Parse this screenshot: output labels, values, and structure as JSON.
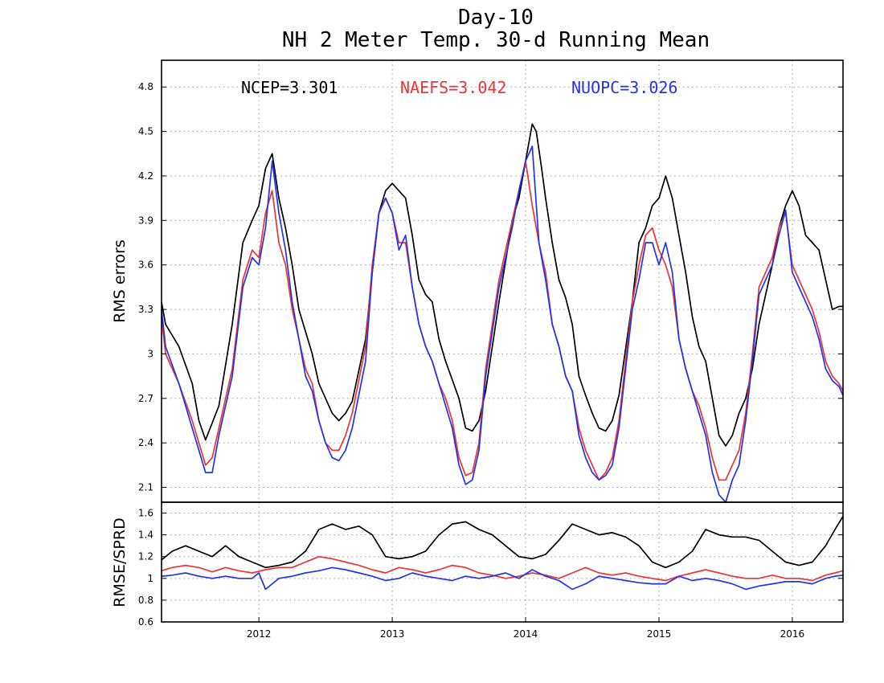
{
  "colors": {
    "ncep": "#000000",
    "naefs": "#ee3333",
    "nuopc": "#2233ee"
  },
  "title_lines": [
    "Day-10",
    "NH 2 Meter Temp. 30-d Running Mean"
  ],
  "stats": [
    {
      "text": "NCEP=3.301",
      "color": "#000000"
    },
    {
      "text": "NAEFS=3.042",
      "color": "#ee3333"
    },
    {
      "text": "NUOPC=3.026",
      "color": "#2233ee"
    }
  ],
  "chart_data": [
    {
      "type": "line",
      "ylabel": "RMS errors",
      "xlim": [
        2011.27,
        2016.38
      ],
      "ylim": [
        2.0,
        4.98
      ],
      "yticks": [
        "2.1",
        "2.4",
        "2.7",
        "3",
        "3.3",
        "3.6",
        "3.9",
        "4.2",
        "4.5",
        "4.8"
      ],
      "xticks": [
        "2012",
        "2013",
        "2014",
        "2015",
        "2016"
      ],
      "grid": true,
      "series": [
        {
          "name": "NCEP",
          "color": "#000000",
          "x": [
            2011.27,
            2011.3,
            2011.4,
            2011.5,
            2011.55,
            2011.6,
            2011.7,
            2011.8,
            2011.88,
            2011.95,
            2012.0,
            2012.05,
            2012.1,
            2012.15,
            2012.2,
            2012.25,
            2012.3,
            2012.35,
            2012.4,
            2012.45,
            2012.5,
            2012.55,
            2012.6,
            2012.65,
            2012.7,
            2012.8,
            2012.85,
            2012.9,
            2012.95,
            2013.0,
            2013.05,
            2013.1,
            2013.15,
            2013.2,
            2013.25,
            2013.3,
            2013.35,
            2013.4,
            2013.5,
            2013.55,
            2013.6,
            2013.65,
            2013.7,
            2013.8,
            2013.9,
            2013.95,
            2014.0,
            2014.05,
            2014.08,
            2014.12,
            2014.15,
            2014.2,
            2014.25,
            2014.3,
            2014.35,
            2014.4,
            2014.45,
            2014.5,
            2014.55,
            2014.6,
            2014.65,
            2014.7,
            2014.8,
            2014.85,
            2014.9,
            2014.95,
            2015.0,
            2015.05,
            2015.1,
            2015.15,
            2015.2,
            2015.25,
            2015.3,
            2015.35,
            2015.4,
            2015.45,
            2015.5,
            2015.55,
            2015.6,
            2015.65,
            2015.7,
            2015.75,
            2015.85,
            2015.9,
            2015.95,
            2016.0,
            2016.05,
            2016.1,
            2016.15,
            2016.2,
            2016.25,
            2016.3,
            2016.35,
            2016.38
          ],
          "y": [
            3.35,
            3.2,
            3.05,
            2.8,
            2.55,
            2.42,
            2.65,
            3.2,
            3.75,
            3.9,
            4.0,
            4.25,
            4.35,
            4.05,
            3.85,
            3.6,
            3.3,
            3.15,
            3.0,
            2.8,
            2.7,
            2.6,
            2.55,
            2.6,
            2.68,
            3.1,
            3.55,
            3.95,
            4.1,
            4.15,
            4.1,
            4.05,
            3.8,
            3.5,
            3.4,
            3.35,
            3.1,
            2.95,
            2.7,
            2.5,
            2.48,
            2.55,
            2.75,
            3.35,
            3.9,
            4.05,
            4.3,
            4.55,
            4.5,
            4.25,
            4.05,
            3.75,
            3.5,
            3.38,
            3.2,
            2.85,
            2.72,
            2.6,
            2.5,
            2.48,
            2.55,
            2.72,
            3.35,
            3.75,
            3.85,
            4.0,
            4.05,
            4.2,
            4.05,
            3.8,
            3.55,
            3.25,
            3.05,
            2.95,
            2.7,
            2.45,
            2.38,
            2.45,
            2.6,
            2.7,
            2.9,
            3.2,
            3.6,
            3.85,
            4.0,
            4.1,
            4.0,
            3.8,
            3.75,
            3.7,
            3.5,
            3.3,
            3.32,
            3.32
          ]
        },
        {
          "name": "NAEFS",
          "color": "#ee3333",
          "x": [
            2011.27,
            2011.3,
            2011.4,
            2011.5,
            2011.55,
            2011.6,
            2011.65,
            2011.7,
            2011.8,
            2011.88,
            2011.95,
            2012.0,
            2012.05,
            2012.1,
            2012.15,
            2012.2,
            2012.25,
            2012.3,
            2012.35,
            2012.4,
            2012.45,
            2012.5,
            2012.55,
            2012.6,
            2012.65,
            2012.7,
            2012.8,
            2012.85,
            2012.9,
            2012.95,
            2013.0,
            2013.05,
            2013.1,
            2013.15,
            2013.2,
            2013.25,
            2013.3,
            2013.35,
            2013.4,
            2013.45,
            2013.5,
            2013.55,
            2013.6,
            2013.65,
            2013.7,
            2013.8,
            2013.9,
            2013.95,
            2014.0,
            2014.05,
            2014.1,
            2014.15,
            2014.2,
            2014.25,
            2014.3,
            2014.35,
            2014.4,
            2014.45,
            2014.5,
            2014.55,
            2014.6,
            2014.65,
            2014.7,
            2014.8,
            2014.85,
            2014.9,
            2014.95,
            2015.0,
            2015.05,
            2015.1,
            2015.15,
            2015.2,
            2015.25,
            2015.3,
            2015.35,
            2015.4,
            2015.45,
            2015.5,
            2015.55,
            2015.6,
            2015.65,
            2015.7,
            2015.75,
            2015.85,
            2015.9,
            2015.95,
            2016.0,
            2016.05,
            2016.1,
            2016.15,
            2016.2,
            2016.25,
            2016.3,
            2016.35,
            2016.38
          ],
          "y": [
            3.25,
            3.0,
            2.8,
            2.55,
            2.4,
            2.25,
            2.3,
            2.5,
            2.9,
            3.5,
            3.7,
            3.65,
            3.95,
            4.1,
            3.75,
            3.6,
            3.3,
            3.1,
            2.9,
            2.8,
            2.55,
            2.4,
            2.35,
            2.35,
            2.45,
            2.6,
            3.05,
            3.6,
            3.95,
            4.05,
            3.95,
            3.75,
            3.75,
            3.45,
            3.2,
            3.05,
            2.95,
            2.8,
            2.7,
            2.55,
            2.3,
            2.18,
            2.2,
            2.4,
            2.9,
            3.5,
            3.9,
            4.1,
            4.3,
            4.0,
            3.75,
            3.55,
            3.2,
            3.05,
            2.85,
            2.75,
            2.5,
            2.35,
            2.25,
            2.15,
            2.2,
            2.3,
            2.55,
            3.35,
            3.6,
            3.8,
            3.85,
            3.7,
            3.6,
            3.45,
            3.1,
            2.9,
            2.75,
            2.65,
            2.5,
            2.3,
            2.15,
            2.15,
            2.25,
            2.35,
            2.6,
            3.0,
            3.45,
            3.65,
            3.85,
            3.95,
            3.6,
            3.5,
            3.4,
            3.3,
            3.15,
            2.95,
            2.85,
            2.8,
            2.75
          ]
        },
        {
          "name": "NUOPC",
          "color": "#2233ee",
          "x": [
            2011.27,
            2011.3,
            2011.4,
            2011.5,
            2011.55,
            2011.6,
            2011.65,
            2011.7,
            2011.8,
            2011.88,
            2011.95,
            2012.0,
            2012.05,
            2012.1,
            2012.15,
            2012.2,
            2012.25,
            2012.3,
            2012.35,
            2012.4,
            2012.45,
            2012.5,
            2012.55,
            2012.6,
            2012.65,
            2012.7,
            2012.8,
            2012.85,
            2012.9,
            2012.95,
            2013.0,
            2013.05,
            2013.1,
            2013.15,
            2013.2,
            2013.25,
            2013.3,
            2013.35,
            2013.4,
            2013.45,
            2013.5,
            2013.55,
            2013.6,
            2013.65,
            2013.7,
            2013.8,
            2013.9,
            2013.95,
            2014.0,
            2014.05,
            2014.1,
            2014.15,
            2014.2,
            2014.25,
            2014.3,
            2014.35,
            2014.4,
            2014.45,
            2014.5,
            2014.55,
            2014.6,
            2014.65,
            2014.7,
            2014.8,
            2014.85,
            2014.9,
            2014.95,
            2015.0,
            2015.05,
            2015.1,
            2015.15,
            2015.2,
            2015.25,
            2015.3,
            2015.35,
            2015.4,
            2015.45,
            2015.5,
            2015.55,
            2015.6,
            2015.65,
            2015.7,
            2015.75,
            2015.85,
            2015.9,
            2015.95,
            2016.0,
            2016.05,
            2016.1,
            2016.15,
            2016.2,
            2016.25,
            2016.3,
            2016.35,
            2016.38
          ],
          "y": [
            3.3,
            3.05,
            2.8,
            2.5,
            2.35,
            2.2,
            2.2,
            2.45,
            2.85,
            3.45,
            3.65,
            3.6,
            3.85,
            4.3,
            3.95,
            3.7,
            3.35,
            3.1,
            2.85,
            2.75,
            2.55,
            2.4,
            2.3,
            2.28,
            2.35,
            2.5,
            2.95,
            3.55,
            3.95,
            4.05,
            3.95,
            3.7,
            3.8,
            3.45,
            3.2,
            3.05,
            2.95,
            2.8,
            2.65,
            2.5,
            2.25,
            2.12,
            2.15,
            2.35,
            2.85,
            3.45,
            3.85,
            4.1,
            4.3,
            4.4,
            3.75,
            3.5,
            3.2,
            3.05,
            2.85,
            2.75,
            2.45,
            2.3,
            2.2,
            2.15,
            2.18,
            2.25,
            2.5,
            3.3,
            3.5,
            3.75,
            3.75,
            3.6,
            3.75,
            3.55,
            3.1,
            2.9,
            2.75,
            2.6,
            2.45,
            2.2,
            2.05,
            2.0,
            2.15,
            2.25,
            2.55,
            2.95,
            3.4,
            3.6,
            3.8,
            3.97,
            3.55,
            3.45,
            3.35,
            3.25,
            3.1,
            2.9,
            2.82,
            2.78,
            2.72
          ]
        }
      ]
    },
    {
      "type": "line",
      "ylabel": "RMSE/SPRD",
      "xlim": [
        2011.27,
        2016.38
      ],
      "ylim": [
        0.6,
        1.7
      ],
      "yticks": [
        "0.6",
        "0.8",
        "1",
        "1.2",
        "1.4",
        "1.6"
      ],
      "xticks": [
        "2012",
        "2013",
        "2014",
        "2015",
        "2016"
      ],
      "grid": true,
      "series": [
        {
          "name": "NCEP",
          "color": "#000000",
          "x": [
            2011.27,
            2011.35,
            2011.45,
            2011.55,
            2011.65,
            2011.75,
            2011.85,
            2011.95,
            2012.05,
            2012.15,
            2012.25,
            2012.35,
            2012.45,
            2012.55,
            2012.65,
            2012.75,
            2012.85,
            2012.95,
            2013.05,
            2013.15,
            2013.25,
            2013.35,
            2013.45,
            2013.55,
            2013.65,
            2013.75,
            2013.85,
            2013.95,
            2014.05,
            2014.15,
            2014.25,
            2014.35,
            2014.45,
            2014.55,
            2014.65,
            2014.75,
            2014.85,
            2014.95,
            2015.05,
            2015.15,
            2015.25,
            2015.35,
            2015.45,
            2015.55,
            2015.65,
            2015.75,
            2015.85,
            2015.95,
            2016.05,
            2016.15,
            2016.25,
            2016.32,
            2016.38
          ],
          "y": [
            1.17,
            1.25,
            1.3,
            1.25,
            1.2,
            1.3,
            1.2,
            1.15,
            1.1,
            1.12,
            1.15,
            1.25,
            1.45,
            1.5,
            1.45,
            1.48,
            1.4,
            1.2,
            1.18,
            1.2,
            1.25,
            1.4,
            1.5,
            1.52,
            1.45,
            1.4,
            1.3,
            1.2,
            1.18,
            1.22,
            1.35,
            1.5,
            1.45,
            1.4,
            1.42,
            1.38,
            1.3,
            1.15,
            1.1,
            1.15,
            1.25,
            1.45,
            1.4,
            1.38,
            1.38,
            1.35,
            1.25,
            1.15,
            1.12,
            1.15,
            1.3,
            1.45,
            1.57
          ]
        },
        {
          "name": "NAEFS",
          "color": "#ee3333",
          "x": [
            2011.27,
            2011.35,
            2011.45,
            2011.55,
            2011.65,
            2011.75,
            2011.85,
            2011.95,
            2012.05,
            2012.15,
            2012.25,
            2012.35,
            2012.45,
            2012.55,
            2012.65,
            2012.75,
            2012.85,
            2012.95,
            2013.05,
            2013.15,
            2013.25,
            2013.35,
            2013.45,
            2013.55,
            2013.65,
            2013.75,
            2013.85,
            2013.95,
            2014.05,
            2014.15,
            2014.25,
            2014.35,
            2014.45,
            2014.55,
            2014.65,
            2014.75,
            2014.85,
            2014.95,
            2015.05,
            2015.15,
            2015.25,
            2015.35,
            2015.45,
            2015.55,
            2015.65,
            2015.75,
            2015.85,
            2015.95,
            2016.05,
            2016.15,
            2016.25,
            2016.32,
            2016.38
          ],
          "y": [
            1.07,
            1.1,
            1.12,
            1.1,
            1.06,
            1.1,
            1.07,
            1.05,
            1.08,
            1.1,
            1.1,
            1.15,
            1.2,
            1.18,
            1.15,
            1.12,
            1.08,
            1.05,
            1.1,
            1.08,
            1.05,
            1.08,
            1.12,
            1.1,
            1.05,
            1.03,
            1.0,
            1.02,
            1.05,
            1.03,
            1.0,
            1.05,
            1.1,
            1.05,
            1.03,
            1.05,
            1.02,
            1.0,
            0.98,
            1.02,
            1.05,
            1.08,
            1.05,
            1.02,
            1.0,
            1.0,
            1.03,
            1.0,
            1.0,
            0.98,
            1.03,
            1.05,
            1.07
          ]
        },
        {
          "name": "NUOPC",
          "color": "#2233ee",
          "x": [
            2011.27,
            2011.35,
            2011.45,
            2011.55,
            2011.65,
            2011.75,
            2011.85,
            2011.95,
            2012.0,
            2012.05,
            2012.1,
            2012.15,
            2012.25,
            2012.35,
            2012.45,
            2012.55,
            2012.65,
            2012.75,
            2012.85,
            2012.95,
            2013.05,
            2013.15,
            2013.25,
            2013.35,
            2013.45,
            2013.55,
            2013.65,
            2013.75,
            2013.85,
            2013.95,
            2014.05,
            2014.15,
            2014.25,
            2014.35,
            2014.45,
            2014.55,
            2014.65,
            2014.75,
            2014.85,
            2014.95,
            2015.05,
            2015.15,
            2015.25,
            2015.35,
            2015.45,
            2015.55,
            2015.65,
            2015.75,
            2015.85,
            2015.95,
            2016.05,
            2016.15,
            2016.25,
            2016.32,
            2016.38
          ],
          "y": [
            1.02,
            1.03,
            1.05,
            1.02,
            1.0,
            1.02,
            1.0,
            1.0,
            1.05,
            0.9,
            0.95,
            1.0,
            1.02,
            1.05,
            1.07,
            1.1,
            1.08,
            1.05,
            1.02,
            0.98,
            1.0,
            1.05,
            1.02,
            1.0,
            0.98,
            1.02,
            1.0,
            1.02,
            1.05,
            1.0,
            1.08,
            1.02,
            0.98,
            0.9,
            0.95,
            1.02,
            1.0,
            0.98,
            0.96,
            0.95,
            0.95,
            1.02,
            0.98,
            1.0,
            0.98,
            0.95,
            0.9,
            0.93,
            0.95,
            0.97,
            0.97,
            0.95,
            1.0,
            1.02,
            1.03
          ]
        }
      ]
    }
  ]
}
